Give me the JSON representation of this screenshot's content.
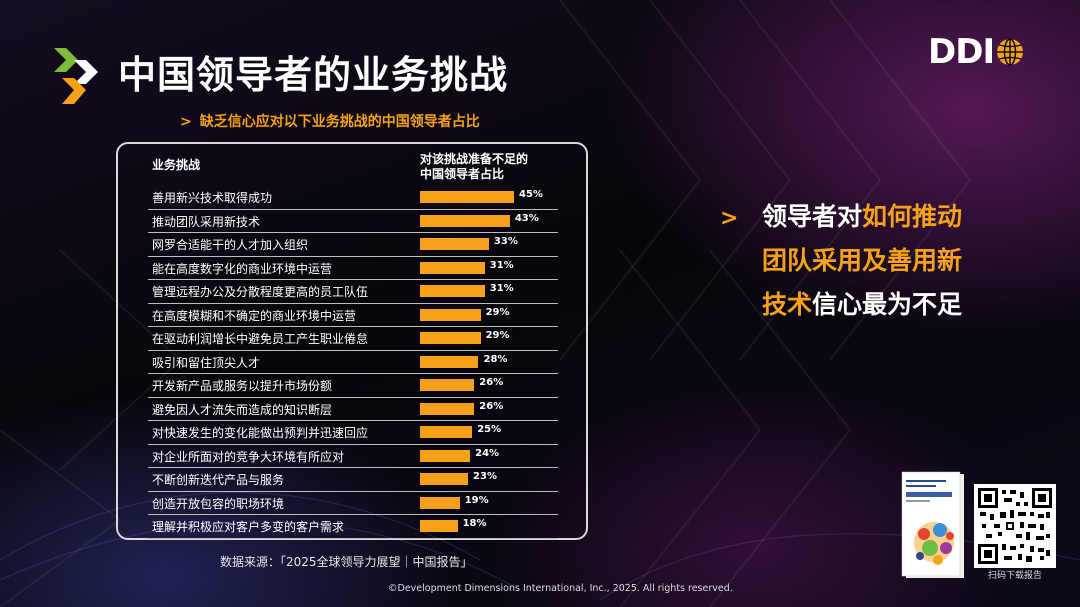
{
  "title": "中国领导者的业务挑战",
  "brand": {
    "name": "DDI"
  },
  "subtitle": {
    "chevron": ">",
    "text": "缺乏信心应对以下业务挑战的中国领导者占比"
  },
  "table": {
    "col_challenge": "业务挑战",
    "col_percent_line1": "对该挑战准备不足的",
    "col_percent_line2": "中国领导者占比"
  },
  "chart_data": {
    "type": "bar",
    "orientation": "horizontal",
    "title": "缺乏信心应对以下业务挑战的中国领导者占比",
    "xlabel": "对该挑战准备不足的中国领导者占比",
    "ylabel": "业务挑战",
    "xlim": [
      0,
      45
    ],
    "unit": "%",
    "bar_color": "#f7a11a",
    "categories": [
      "善用新兴技术取得成功",
      "推动团队采用新技术",
      "网罗合适能干的人才加入组织",
      "能在高度数字化的商业环境中运营",
      "管理远程办公及分散程度更高的员工队伍",
      "在高度模糊和不确定的商业环境中运营",
      "在驱动利润增长中避免员工产生职业倦怠",
      "吸引和留住顶尖人才",
      "开发新产品或服务以提升市场份额",
      "避免因人才流失而造成的知识断层",
      "对快速发生的变化能做出预判并迅速回应",
      "对企业所面对的竞争大环境有所应对",
      "不断创新迭代产品与服务",
      "创造开放包容的职场环境",
      "理解并积极应对客户多变的客户需求"
    ],
    "values": [
      45,
      43,
      33,
      31,
      31,
      29,
      29,
      28,
      26,
      26,
      25,
      24,
      23,
      19,
      18
    ],
    "value_labels": [
      "45%",
      "43%",
      "33%",
      "31%",
      "31%",
      "29%",
      "29%",
      "28%",
      "26%",
      "26%",
      "25%",
      "24%",
      "23%",
      "19%",
      "18%"
    ]
  },
  "callout": {
    "chevron": ">",
    "line1_plain": "领导者对",
    "line1_highlight": "如何推动",
    "line2_highlight": "团队采用及善用新",
    "line3_highlight": "技术",
    "line3_plain": "信心最为不足"
  },
  "source": "数据来源：「2025全球领导力展望｜中国报告」",
  "copyright": "©Development Dimensions International, Inc., 2025. All rights reserved.",
  "qr_caption": "扫码下载报告",
  "colors": {
    "accent": "#f5a21a",
    "background": "#0b0712",
    "text": "#ffffff"
  },
  "icons": [
    "double-chevron-logo-icon",
    "ddi-globe-icon",
    "report-cover-image",
    "qr-code-image"
  ]
}
